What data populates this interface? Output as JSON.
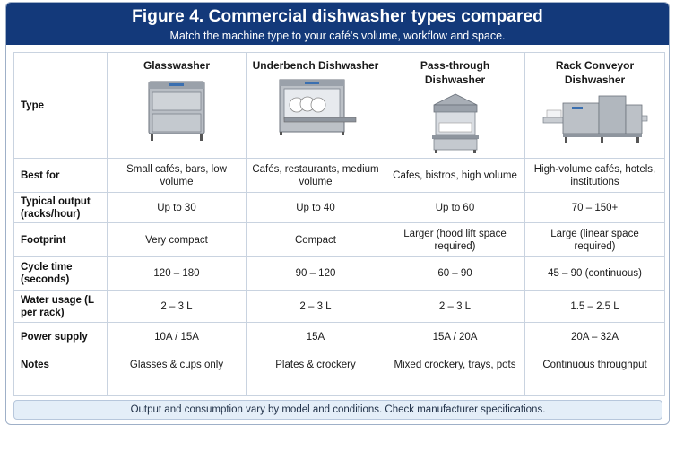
{
  "header": {
    "title": "Figure 4. Commercial dishwasher types compared",
    "subtitle": "Match the machine type to your café's volume, workflow and space."
  },
  "table": {
    "type_label": "Type",
    "columns": [
      {
        "name": "Glasswasher",
        "illustration": "glasswasher-illustration"
      },
      {
        "name": "Underbench Dishwasher",
        "illustration": "underbench-dishwasher-illustration"
      },
      {
        "name": "Pass-through Dishwasher",
        "illustration": "pass-through-dishwasher-illustration"
      },
      {
        "name": "Rack Conveyor Dishwasher",
        "illustration": "rack-conveyor-dishwasher-illustration"
      }
    ],
    "rows": [
      {
        "label": "Best for",
        "cells": [
          "Small cafés, bars, low volume",
          "Cafés, restaurants, medium volume",
          "Cafes, bistros, high volume",
          "High-volume cafés, hotels, institutions"
        ]
      },
      {
        "label": "Typical output (racks/hour)",
        "cells": [
          "Up to 30",
          "Up to 40",
          "Up to 60",
          "70 – 150+"
        ]
      },
      {
        "label": "Footprint",
        "cells": [
          "Very compact",
          "Compact",
          "Larger (hood lift space required)",
          "Large (linear space required)"
        ]
      },
      {
        "label": "Cycle time (seconds)",
        "cells": [
          "120 – 180",
          "90 – 120",
          "60 – 90",
          "45 – 90 (continuous)"
        ]
      },
      {
        "label": "Water usage (L per rack)",
        "cells": [
          "2 – 3 L",
          "2 – 3 L",
          "2 – 3 L",
          "1.5 – 2.5 L"
        ]
      },
      {
        "label": "Power supply",
        "cells": [
          "10A / 15A",
          "15A",
          "15A / 20A",
          "20A – 32A"
        ]
      },
      {
        "label": "Notes",
        "cells": [
          "Glasses & cups only",
          "Plates & crockery",
          "Mixed crockery, trays, pots",
          "Continuous throughput"
        ]
      }
    ]
  },
  "footer": {
    "note": "Output and consumption vary by model and conditions. Check manufacturer specifications."
  },
  "colors": {
    "header_bg": "#13397a",
    "grid": "#c9d3e0",
    "footer_bg": "#e4eef8"
  }
}
